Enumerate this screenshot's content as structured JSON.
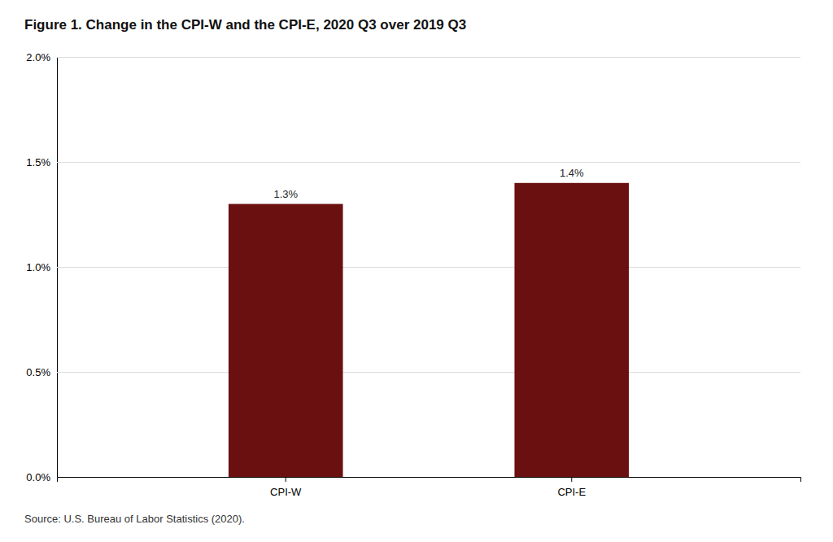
{
  "chart_data": {
    "type": "bar",
    "title": "Figure 1. Change in the CPI-W and the CPI-E, 2020 Q3 over 2019 Q3",
    "annotations": [
      "Source: U.S. Bureau of Labor Statistics (2020)."
    ],
    "categories": [
      "CPI-W",
      "CPI-E"
    ],
    "values": [
      1.3,
      1.4
    ],
    "value_labels": [
      "1.3%",
      "1.4%"
    ],
    "data_labels": true,
    "color": "#6B1010",
    "ylim": [
      0.0,
      2.0
    ],
    "yticks": [
      {
        "value": 0.0,
        "label": "0.0%"
      },
      {
        "value": 0.5,
        "label": "0.5%"
      },
      {
        "value": 1.0,
        "label": "1.0%"
      },
      {
        "value": 1.5,
        "label": "1.5%"
      },
      {
        "value": 2.0,
        "label": "2.0%"
      }
    ],
    "grid": true
  }
}
